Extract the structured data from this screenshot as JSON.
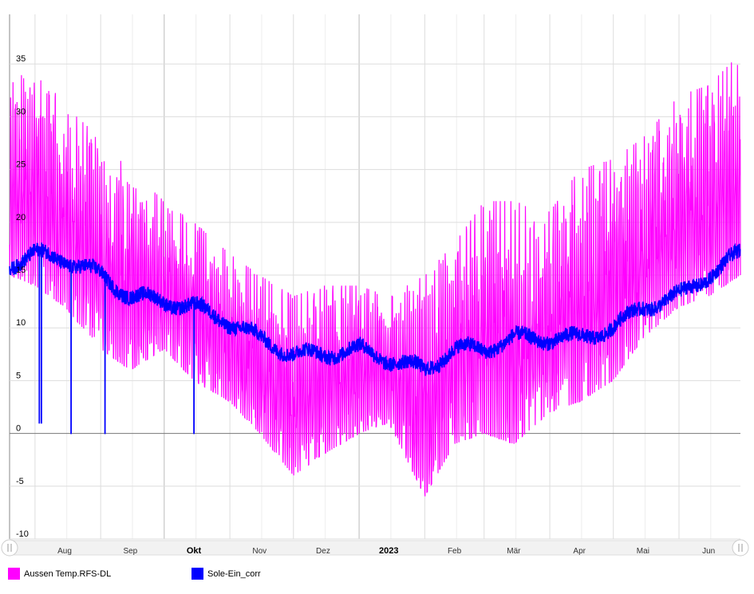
{
  "chart_data": {
    "type": "line",
    "title": "",
    "xlabel": "",
    "ylabel": "",
    "ylim": [
      -10,
      40
    ],
    "yticks": [
      -10,
      -5,
      0,
      5,
      10,
      15,
      20,
      25,
      30,
      35
    ],
    "grid": true,
    "legend_placement": "bottom-left",
    "x_range": [
      "2022-07-20",
      "2023-06-30"
    ],
    "x_tick_labels": [
      {
        "label": "Aug",
        "date": "2022-08-01",
        "bold": false
      },
      {
        "label": "Sep",
        "date": "2022-09-01",
        "bold": false
      },
      {
        "label": "Okt",
        "date": "2022-10-01",
        "bold": true
      },
      {
        "label": "Nov",
        "date": "2022-11-01",
        "bold": false
      },
      {
        "label": "Dez",
        "date": "2022-12-01",
        "bold": false
      },
      {
        "label": "2023",
        "date": "2023-01-01",
        "bold": true
      },
      {
        "label": "Feb",
        "date": "2023-02-01",
        "bold": false
      },
      {
        "label": "Mär",
        "date": "2023-03-01",
        "bold": false
      },
      {
        "label": "Apr",
        "date": "2023-04-01",
        "bold": false
      },
      {
        "label": "Mai",
        "date": "2023-05-01",
        "bold": false
      },
      {
        "label": "Jun",
        "date": "2023-06-01",
        "bold": false
      }
    ],
    "series": [
      {
        "name": "Aussen Temp.RFS-DL",
        "color": "#ff00ff",
        "x": [
          "2022-07-20",
          "2022-08-01",
          "2022-08-15",
          "2022-09-01",
          "2022-09-15",
          "2022-10-01",
          "2022-10-15",
          "2022-11-01",
          "2022-11-15",
          "2022-12-01",
          "2022-12-15",
          "2023-01-01",
          "2023-01-15",
          "2023-02-01",
          "2023-02-15",
          "2023-03-01",
          "2023-03-15",
          "2023-04-01",
          "2023-04-15",
          "2023-05-01",
          "2023-05-15",
          "2023-06-01",
          "2023-06-15",
          "2023-06-30"
        ],
        "y_daily_min": [
          15,
          14,
          12,
          8,
          6,
          8,
          5,
          3,
          0,
          -4,
          -2,
          0,
          1,
          -6,
          -1,
          0,
          -1,
          2,
          3,
          5,
          9,
          12,
          13,
          15
        ],
        "y_daily_max": [
          33,
          35,
          31,
          28,
          25,
          22,
          20,
          17,
          15,
          13,
          14,
          14,
          13,
          15,
          18,
          22,
          22,
          21,
          25,
          26,
          28,
          32,
          33,
          36
        ]
      },
      {
        "name": "Sole-Ein_corr",
        "color": "#0000ff",
        "x": [
          "2022-07-20",
          "2022-08-01",
          "2022-08-15",
          "2022-09-01",
          "2022-09-15",
          "2022-10-01",
          "2022-10-15",
          "2022-11-01",
          "2022-11-15",
          "2022-12-01",
          "2022-12-15",
          "2023-01-01",
          "2023-01-15",
          "2023-02-01",
          "2023-02-15",
          "2023-03-01",
          "2023-03-15",
          "2023-04-01",
          "2023-04-15",
          "2023-05-01",
          "2023-05-15",
          "2023-06-01",
          "2023-06-15",
          "2023-06-30"
        ],
        "y": [
          16,
          17,
          16.5,
          15,
          13,
          12.5,
          12,
          10.5,
          9,
          7.5,
          7.5,
          8,
          7,
          6,
          8,
          8,
          9,
          9,
          9,
          10,
          12,
          13,
          15,
          17
        ],
        "dropouts": [
          {
            "date": "2022-08-03",
            "value": 1
          },
          {
            "date": "2022-08-04",
            "value": 1
          },
          {
            "date": "2022-08-18",
            "value": 0
          },
          {
            "date": "2022-09-03",
            "value": 0
          },
          {
            "date": "2022-10-15",
            "value": 0
          }
        ]
      }
    ]
  },
  "legend": {
    "items": [
      {
        "label": "Aussen Temp.RFS-DL",
        "color": "#ff00ff"
      },
      {
        "label": "Sole-Ein_corr",
        "color": "#0000ff"
      }
    ]
  },
  "navigator": {
    "left_handle": "grip-icon",
    "right_handle": "grip-icon"
  }
}
